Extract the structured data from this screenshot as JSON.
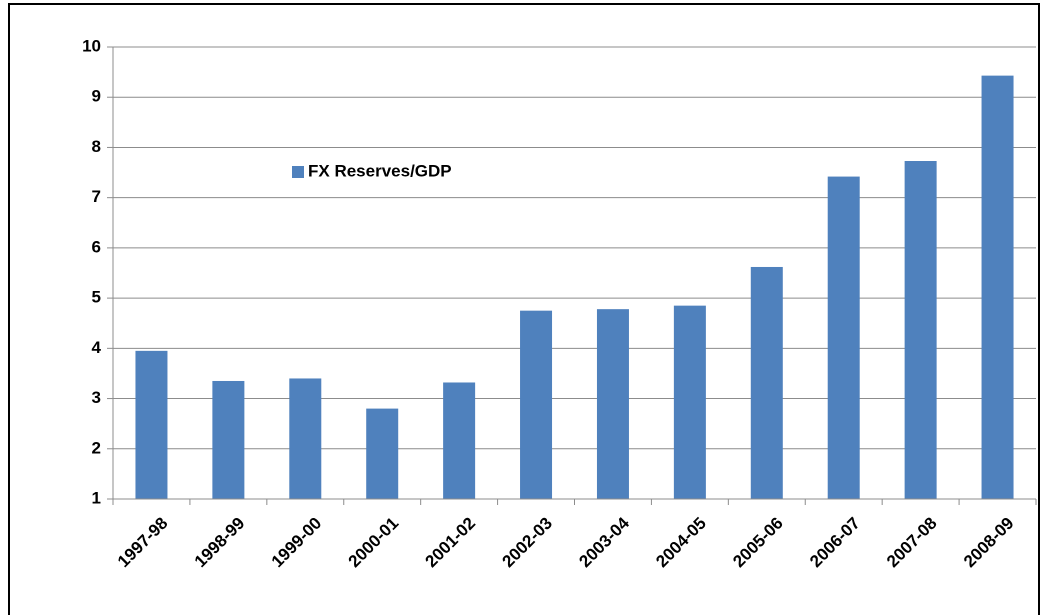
{
  "chart_data": {
    "type": "bar",
    "categories": [
      "1997-98",
      "1998-99",
      "1999-00",
      "2000-01",
      "2001-02",
      "2002-03",
      "2003-04",
      "2004-05",
      "2005-06",
      "2006-07",
      "2007-08",
      "2008-09"
    ],
    "series": [
      {
        "name": "FX Reserves/GDP",
        "color": "#4f81bd",
        "values": [
          3.95,
          3.35,
          3.4,
          2.8,
          3.32,
          4.75,
          4.78,
          4.85,
          5.62,
          7.42,
          7.73,
          9.43
        ]
      }
    ],
    "ylim": [
      1,
      10
    ],
    "yticks": [
      1,
      2,
      3,
      4,
      5,
      6,
      7,
      8,
      9,
      10
    ],
    "grid": true,
    "legend": "upper left"
  }
}
